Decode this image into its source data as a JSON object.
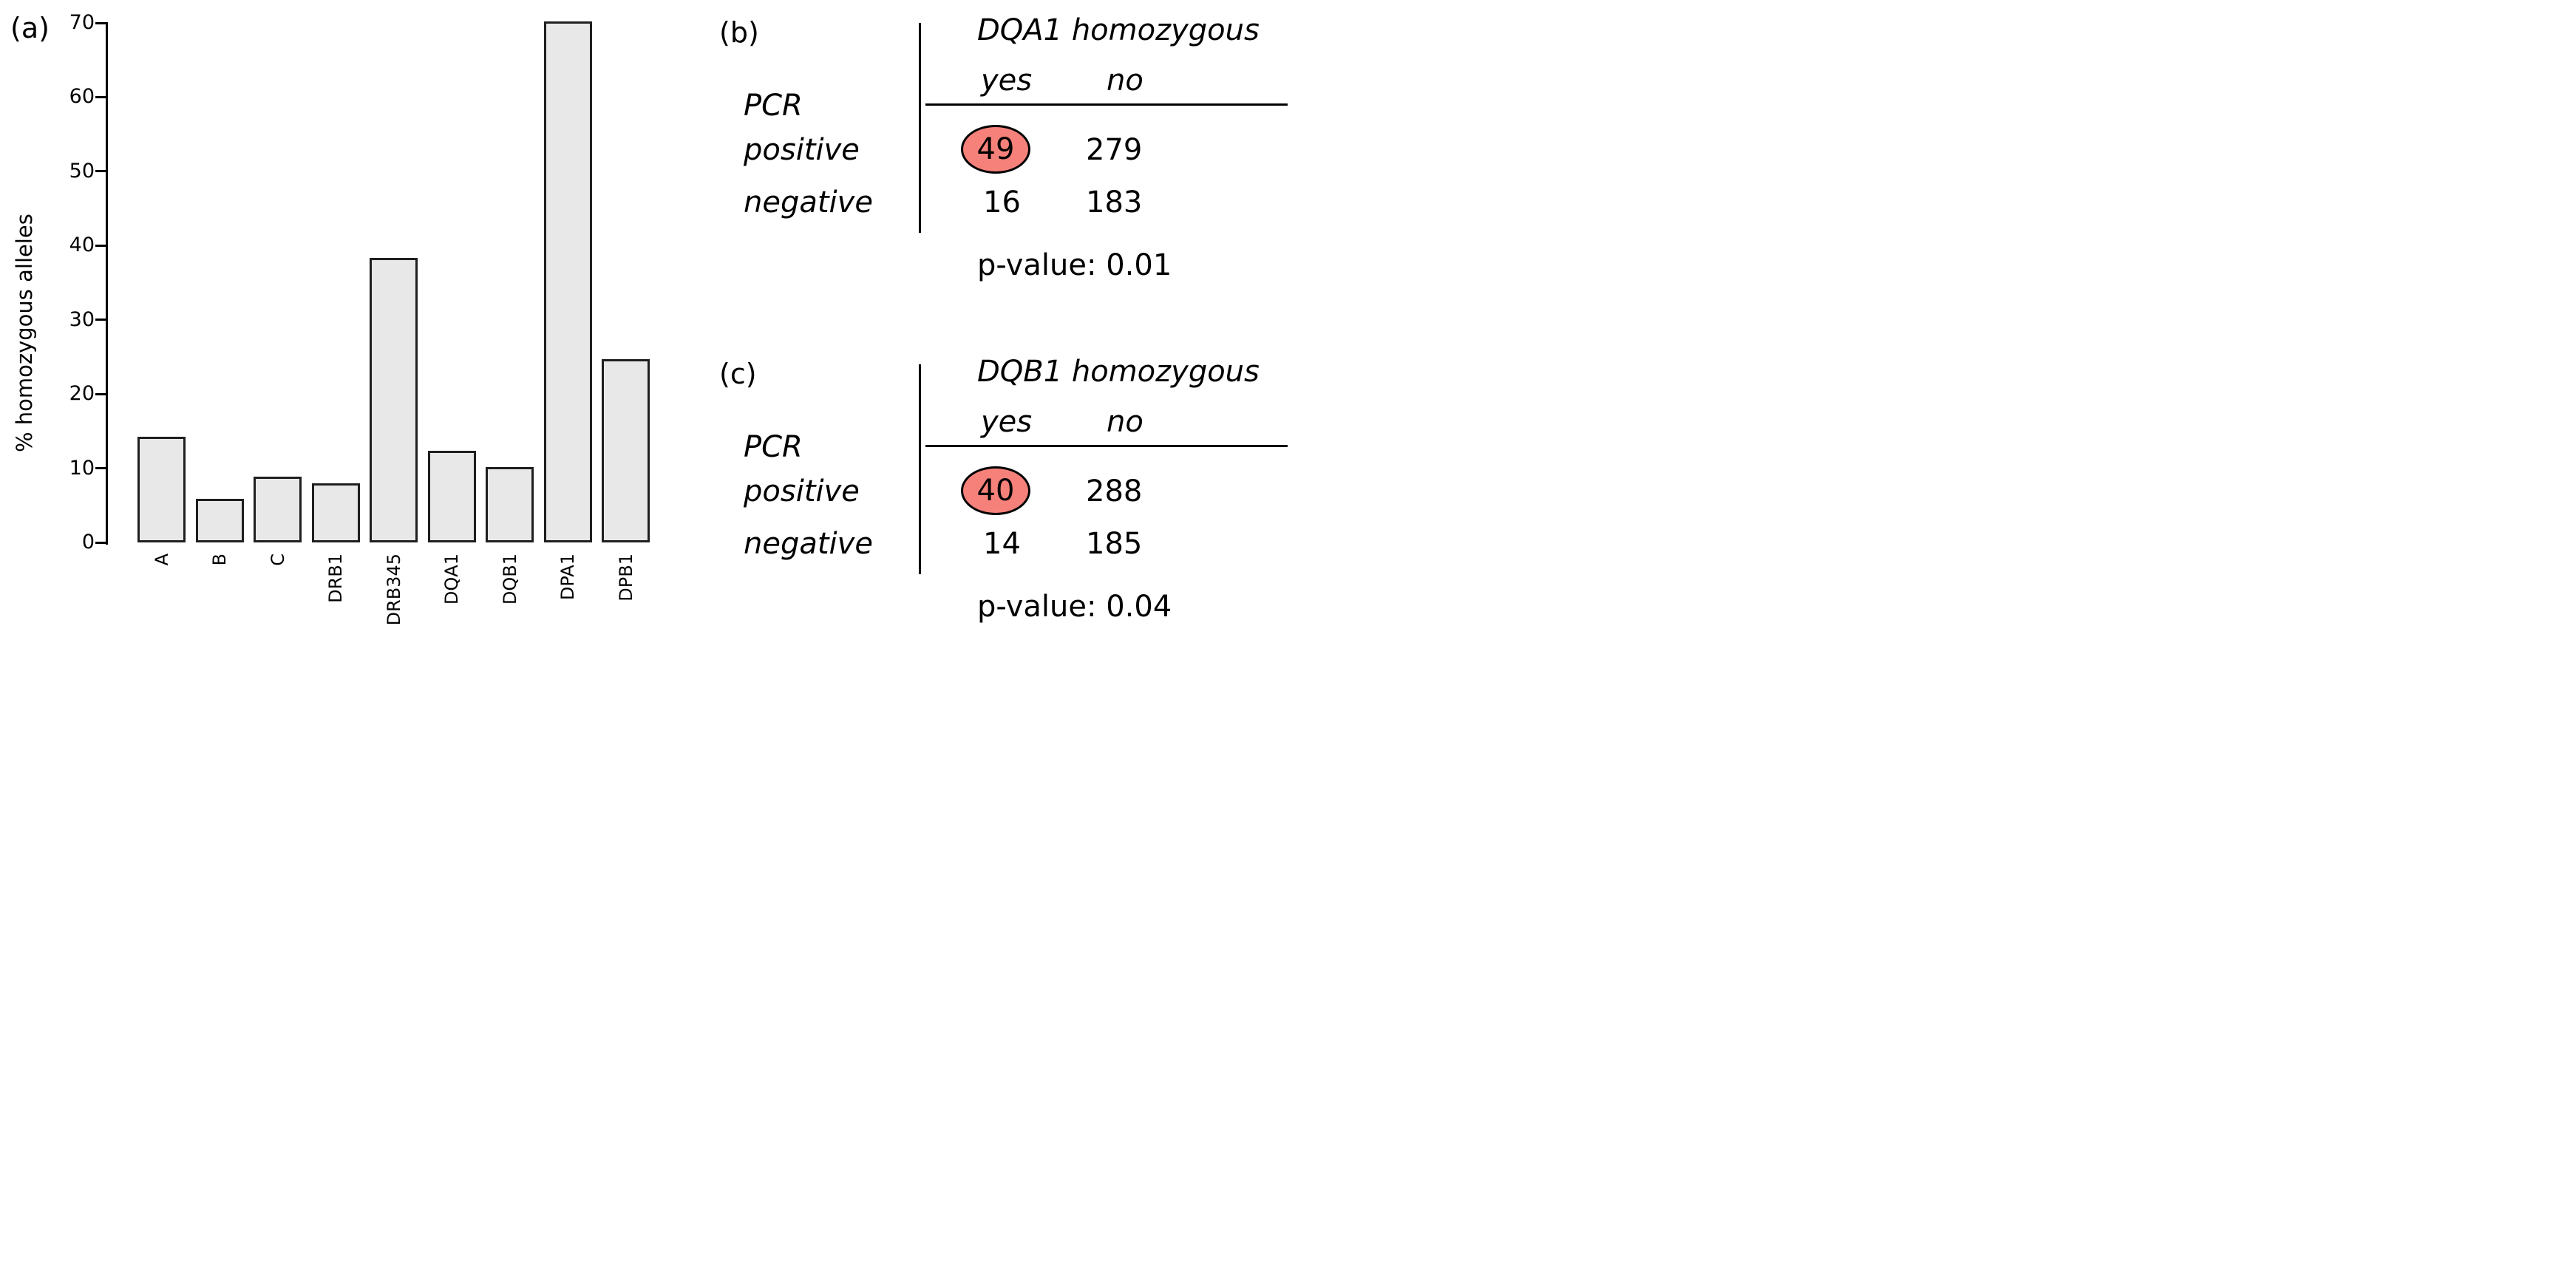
{
  "figure_colors": {
    "background": "#ffffff",
    "bar_fill": "#e8e8e8",
    "bar_border": "#1f1f1f",
    "highlight_fill": "#f6817b",
    "line_color": "#000000"
  },
  "chart_data": [
    {
      "type": "bar",
      "panel": "(a)",
      "categories": [
        "A",
        "B",
        "C",
        "DRB1",
        "DRB345",
        "DQA1",
        "DQB1",
        "DPA1",
        "DPB1"
      ],
      "values": [
        14.2,
        5.9,
        8.9,
        8.0,
        38.3,
        12.3,
        10.2,
        70.2,
        24.7
      ],
      "title": "",
      "xlabel": "",
      "ylabel": "% homozygous alleles",
      "ylim": [
        0,
        70
      ],
      "yticks": [
        0,
        10,
        20,
        30,
        40,
        50,
        60,
        70
      ],
      "grid": false,
      "legend": "none",
      "bar_fill": "#e8e8e8"
    },
    {
      "type": "table",
      "panel": "(b)",
      "title": "DQA1 homozygous",
      "col_labels": {
        "yes": "yes",
        "no": "no"
      },
      "row_group": "PCR",
      "row_labels": {
        "positive": "positive",
        "negative": "negative"
      },
      "cells": {
        "pos_yes": "49",
        "pos_no": "279",
        "neg_yes": "16",
        "neg_no": "183"
      },
      "highlight": {
        "cell": "pos_yes",
        "color": "#f6817b"
      },
      "p_text": "p-value: 0.01"
    },
    {
      "type": "table",
      "panel": "(c)",
      "title": "DQB1 homozygous",
      "col_labels": {
        "yes": "yes",
        "no": "no"
      },
      "row_group": "PCR",
      "row_labels": {
        "positive": "positive",
        "negative": "negative"
      },
      "cells": {
        "pos_yes": "40",
        "pos_no": "288",
        "neg_yes": "14",
        "neg_no": "185"
      },
      "highlight": {
        "cell": "pos_yes",
        "color": "#f6817b"
      },
      "p_text": "p-value: 0.04"
    }
  ]
}
